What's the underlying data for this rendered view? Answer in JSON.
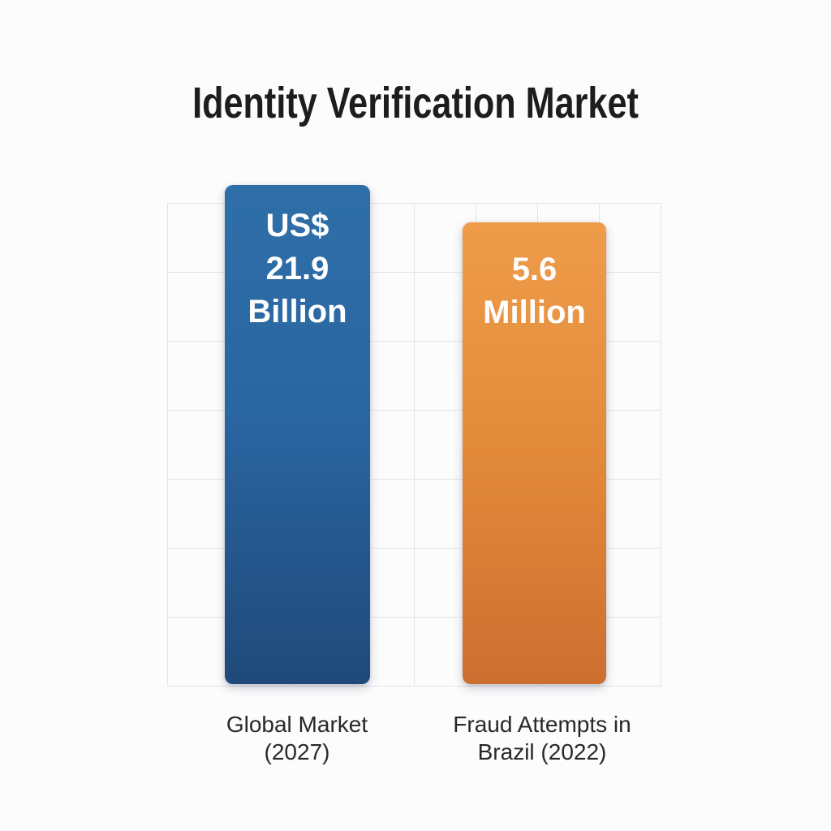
{
  "title": "Identity Verification Market",
  "colors": {
    "bar_blue": "#2a66a2",
    "bar_orange": "#e28a3a",
    "gridline": "#e4e4e8",
    "title_text": "#1d1d1f",
    "label_text": "#28282b",
    "value_text": "#ffffff",
    "background": "#fcfcfd"
  },
  "chart_data": {
    "type": "bar",
    "title": "Identity Verification Market",
    "categories": [
      "Global Market (2027)",
      "Fraud Attempts in Brazil (2022)"
    ],
    "values": [
      21.9,
      5.6
    ],
    "units": [
      "US$ Billion",
      "Million"
    ],
    "xlabel": "",
    "ylabel": "",
    "legend": false,
    "grid": {
      "visible": true,
      "columns": 8,
      "rows": 7
    },
    "bars": [
      {
        "category_lines": {
          "line1": "Global Market",
          "line2": "(2027)"
        },
        "value": 21.9,
        "unit": "US$ Billion",
        "value_lines": {
          "line1": "US$",
          "line2": "21.9",
          "line3": "Billion"
        },
        "color": "#2a66a2"
      },
      {
        "category_lines": {
          "line1": "Fraud Attempts in",
          "line2": "Brazil (2022)"
        },
        "value": 5.6,
        "unit": "Million",
        "value_lines": {
          "line1": "5.6",
          "line2": "Million"
        },
        "color": "#e28a3a"
      }
    ]
  }
}
